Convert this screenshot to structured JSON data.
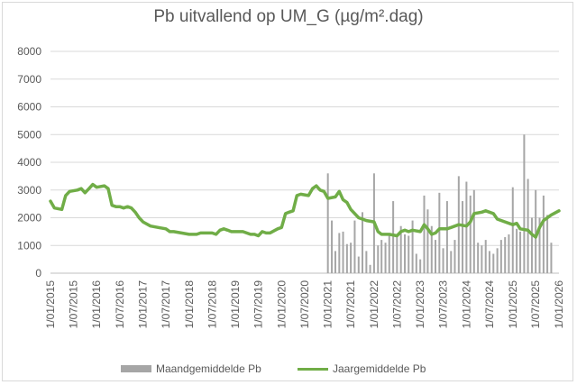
{
  "chart_data": {
    "type": "bar+line",
    "title": "Pb uitvallend op UM_G (µg/m².dag)",
    "ylim": [
      0,
      8000
    ],
    "yticks": [
      "0",
      "1000",
      "2000",
      "3000",
      "4000",
      "5000",
      "6000",
      "7000",
      "8000"
    ],
    "xticks": [
      "1/01/2015",
      "1/07/2015",
      "1/01/2016",
      "1/07/2016",
      "1/01/2017",
      "1/07/2017",
      "1/01/2018",
      "1/07/2018",
      "1/01/2019",
      "1/07/2019",
      "1/01/2020",
      "1/07/2020",
      "1/01/2021",
      "1/07/2021",
      "1/01/2022",
      "1/07/2022",
      "1/01/2023",
      "1/07/2023",
      "1/01/2024",
      "1/07/2024",
      "1/01/2025",
      "1/07/2025",
      "1/01/2026"
    ],
    "xrange": [
      "2015-01-01",
      "2026-01-01"
    ],
    "grid": "horizontal",
    "legend": "bottom",
    "colors": {
      "bars": "#a6a6a6",
      "line": "#70ad47",
      "grid": "#d9d9d9",
      "text": "#595959"
    },
    "series": [
      {
        "name": "Maandgemiddelde Pb",
        "type": "bar",
        "points": [
          [
            "2021-01-01",
            3600
          ],
          [
            "2021-02-01",
            1900
          ],
          [
            "2021-03-01",
            800
          ],
          [
            "2021-04-01",
            1450
          ],
          [
            "2021-05-01",
            1500
          ],
          [
            "2021-06-01",
            1050
          ],
          [
            "2021-07-01",
            1100
          ],
          [
            "2021-08-01",
            1900
          ],
          [
            "2021-09-01",
            600
          ],
          [
            "2021-10-01",
            2200
          ],
          [
            "2021-11-01",
            800
          ],
          [
            "2021-12-01",
            300
          ],
          [
            "2022-01-01",
            3600
          ],
          [
            "2022-02-01",
            1000
          ],
          [
            "2022-03-01",
            1200
          ],
          [
            "2022-04-01",
            1100
          ],
          [
            "2022-05-01",
            1400
          ],
          [
            "2022-06-01",
            2600
          ],
          [
            "2022-07-01",
            1300
          ],
          [
            "2022-08-01",
            1700
          ],
          [
            "2022-09-01",
            1400
          ],
          [
            "2022-10-01",
            1350
          ],
          [
            "2022-11-01",
            1900
          ],
          [
            "2022-12-01",
            700
          ],
          [
            "2023-01-01",
            500
          ],
          [
            "2023-02-01",
            2800
          ],
          [
            "2023-03-01",
            2300
          ],
          [
            "2023-04-01",
            1700
          ],
          [
            "2023-05-01",
            1200
          ],
          [
            "2023-06-01",
            2900
          ],
          [
            "2023-07-01",
            900
          ],
          [
            "2023-08-01",
            2600
          ],
          [
            "2023-09-01",
            800
          ],
          [
            "2023-10-01",
            1200
          ],
          [
            "2023-11-01",
            3500
          ],
          [
            "2023-12-01",
            2600
          ],
          [
            "2024-01-01",
            3300
          ],
          [
            "2024-02-01",
            2800
          ],
          [
            "2024-03-01",
            3000
          ],
          [
            "2024-04-01",
            1100
          ],
          [
            "2024-05-01",
            1000
          ],
          [
            "2024-06-01",
            1200
          ],
          [
            "2024-07-01",
            800
          ],
          [
            "2024-08-01",
            700
          ],
          [
            "2024-09-01",
            900
          ],
          [
            "2024-10-01",
            1200
          ],
          [
            "2024-11-01",
            1300
          ],
          [
            "2024-12-01",
            1400
          ],
          [
            "2025-01-01",
            3100
          ],
          [
            "2025-02-01",
            1600
          ],
          [
            "2025-03-01",
            1500
          ],
          [
            "2025-04-01",
            5000
          ],
          [
            "2025-05-01",
            3400
          ],
          [
            "2025-06-01",
            2000
          ],
          [
            "2025-07-01",
            3000
          ],
          [
            "2025-08-01",
            2000
          ],
          [
            "2025-09-01",
            2800
          ],
          [
            "2025-10-01",
            2100
          ],
          [
            "2025-11-01",
            1100
          ]
        ]
      },
      {
        "name": "Jaargemiddelde Pb",
        "type": "line",
        "points": [
          [
            "2015-01-01",
            2600
          ],
          [
            "2015-02-01",
            2350
          ],
          [
            "2015-04-01",
            2300
          ],
          [
            "2015-05-01",
            2800
          ],
          [
            "2015-06-01",
            2950
          ],
          [
            "2015-08-01",
            3000
          ],
          [
            "2015-09-01",
            3050
          ],
          [
            "2015-10-01",
            2900
          ],
          [
            "2015-11-01",
            3050
          ],
          [
            "2015-12-01",
            3200
          ],
          [
            "2016-01-01",
            3100
          ],
          [
            "2016-03-01",
            3150
          ],
          [
            "2016-04-01",
            3050
          ],
          [
            "2016-05-01",
            2450
          ],
          [
            "2016-06-01",
            2400
          ],
          [
            "2016-07-01",
            2400
          ],
          [
            "2016-08-01",
            2350
          ],
          [
            "2016-09-01",
            2400
          ],
          [
            "2016-10-01",
            2350
          ],
          [
            "2016-11-01",
            2200
          ],
          [
            "2016-12-01",
            2000
          ],
          [
            "2017-01-01",
            1850
          ],
          [
            "2017-03-01",
            1700
          ],
          [
            "2017-05-01",
            1650
          ],
          [
            "2017-07-01",
            1600
          ],
          [
            "2017-08-01",
            1500
          ],
          [
            "2017-09-01",
            1500
          ],
          [
            "2017-11-01",
            1450
          ],
          [
            "2018-01-01",
            1400
          ],
          [
            "2018-03-01",
            1400
          ],
          [
            "2018-04-01",
            1450
          ],
          [
            "2018-05-01",
            1450
          ],
          [
            "2018-07-01",
            1450
          ],
          [
            "2018-08-01",
            1400
          ],
          [
            "2018-09-01",
            1550
          ],
          [
            "2018-10-01",
            1600
          ],
          [
            "2018-11-01",
            1550
          ],
          [
            "2018-12-01",
            1500
          ],
          [
            "2019-01-01",
            1500
          ],
          [
            "2019-03-01",
            1500
          ],
          [
            "2019-05-01",
            1400
          ],
          [
            "2019-06-01",
            1400
          ],
          [
            "2019-07-01",
            1350
          ],
          [
            "2019-08-01",
            1500
          ],
          [
            "2019-09-01",
            1450
          ],
          [
            "2019-10-01",
            1450
          ],
          [
            "2019-12-01",
            1600
          ],
          [
            "2020-01-01",
            1650
          ],
          [
            "2020-02-01",
            2150
          ],
          [
            "2020-03-01",
            2200
          ],
          [
            "2020-04-01",
            2250
          ],
          [
            "2020-05-01",
            2800
          ],
          [
            "2020-06-01",
            2850
          ],
          [
            "2020-08-01",
            2800
          ],
          [
            "2020-09-01",
            3050
          ],
          [
            "2020-10-01",
            3150
          ],
          [
            "2020-11-01",
            3000
          ],
          [
            "2020-12-01",
            2950
          ],
          [
            "2021-01-01",
            2700
          ],
          [
            "2021-03-01",
            2750
          ],
          [
            "2021-04-01",
            2950
          ],
          [
            "2021-05-01",
            2650
          ],
          [
            "2021-06-01",
            2550
          ],
          [
            "2021-07-01",
            2300
          ],
          [
            "2021-09-01",
            2000
          ],
          [
            "2021-11-01",
            1900
          ],
          [
            "2022-01-01",
            1850
          ],
          [
            "2022-02-01",
            1500
          ],
          [
            "2022-03-01",
            1400
          ],
          [
            "2022-05-01",
            1400
          ],
          [
            "2022-07-01",
            1350
          ],
          [
            "2022-08-01",
            1500
          ],
          [
            "2022-09-01",
            1550
          ],
          [
            "2022-10-01",
            1500
          ],
          [
            "2022-11-01",
            1550
          ],
          [
            "2023-01-01",
            1500
          ],
          [
            "2023-02-01",
            1750
          ],
          [
            "2023-03-01",
            1600
          ],
          [
            "2023-04-01",
            1400
          ],
          [
            "2023-05-01",
            1450
          ],
          [
            "2023-06-01",
            1600
          ],
          [
            "2023-08-01",
            1600
          ],
          [
            "2023-09-01",
            1650
          ],
          [
            "2023-11-01",
            1750
          ],
          [
            "2024-01-01",
            1700
          ],
          [
            "2024-02-01",
            1850
          ],
          [
            "2024-03-01",
            2150
          ],
          [
            "2024-05-01",
            2200
          ],
          [
            "2024-06-01",
            2250
          ],
          [
            "2024-07-01",
            2200
          ],
          [
            "2024-08-01",
            2150
          ],
          [
            "2024-09-01",
            1950
          ],
          [
            "2024-11-01",
            1850
          ],
          [
            "2025-01-01",
            1750
          ],
          [
            "2025-02-01",
            1800
          ],
          [
            "2025-03-01",
            1600
          ],
          [
            "2025-05-01",
            1550
          ],
          [
            "2025-06-01",
            1400
          ],
          [
            "2025-07-01",
            1300
          ],
          [
            "2025-08-01",
            1650
          ],
          [
            "2025-09-01",
            1900
          ],
          [
            "2025-11-01",
            2100
          ],
          [
            "2026-01-01",
            2250
          ]
        ]
      }
    ]
  }
}
